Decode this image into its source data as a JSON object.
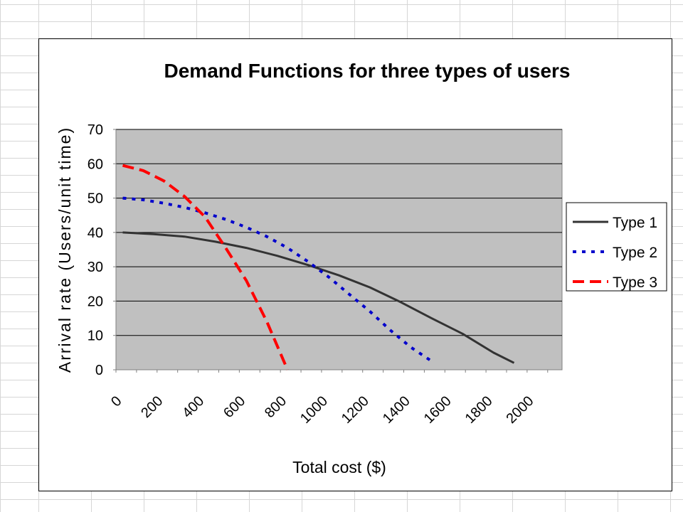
{
  "chart_data": {
    "type": "line",
    "title": "Demand Functions for three types of users",
    "xlabel": "Total cost ($)",
    "ylabel": "Arrival rate (Users/unit time)",
    "x_ticks": [
      "0",
      "200",
      "400",
      "600",
      "800",
      "1000",
      "1200",
      "1400",
      "1600",
      "1800",
      "2000"
    ],
    "y_ticks": [
      "0",
      "10",
      "20",
      "30",
      "40",
      "50",
      "60",
      "70"
    ],
    "xlim": [
      0,
      2100
    ],
    "ylim": [
      0,
      70
    ],
    "grid": "horizontal",
    "legend": "right",
    "series": [
      {
        "name": "Type 1",
        "color": "#333333",
        "style": "solid",
        "x": [
          50,
          200,
          350,
          500,
          650,
          800,
          950,
          1100,
          1250,
          1400,
          1550,
          1700,
          1850,
          1950
        ],
        "y": [
          40,
          39.5,
          38.8,
          37.3,
          35.5,
          33.2,
          30.5,
          27.5,
          24,
          19.7,
          15,
          10.5,
          5,
          2
        ]
      },
      {
        "name": "Type 2",
        "color": "#0000cc",
        "style": "dotted",
        "x": [
          50,
          150,
          250,
          350,
          450,
          550,
          650,
          750,
          850,
          950,
          1050,
          1150,
          1250,
          1350,
          1450,
          1550
        ],
        "y": [
          50,
          49.5,
          48.5,
          47.3,
          45.7,
          43.8,
          41.5,
          38.8,
          35.5,
          31.5,
          27,
          22,
          17,
          11.5,
          6.5,
          2.5
        ]
      },
      {
        "name": "Type 3",
        "color": "#ff0000",
        "style": "dashed",
        "x": [
          50,
          150,
          250,
          350,
          450,
          550,
          650,
          750,
          850
        ],
        "y": [
          59.5,
          58,
          55,
          50.5,
          44.5,
          35.5,
          26,
          14,
          0
        ]
      }
    ]
  }
}
